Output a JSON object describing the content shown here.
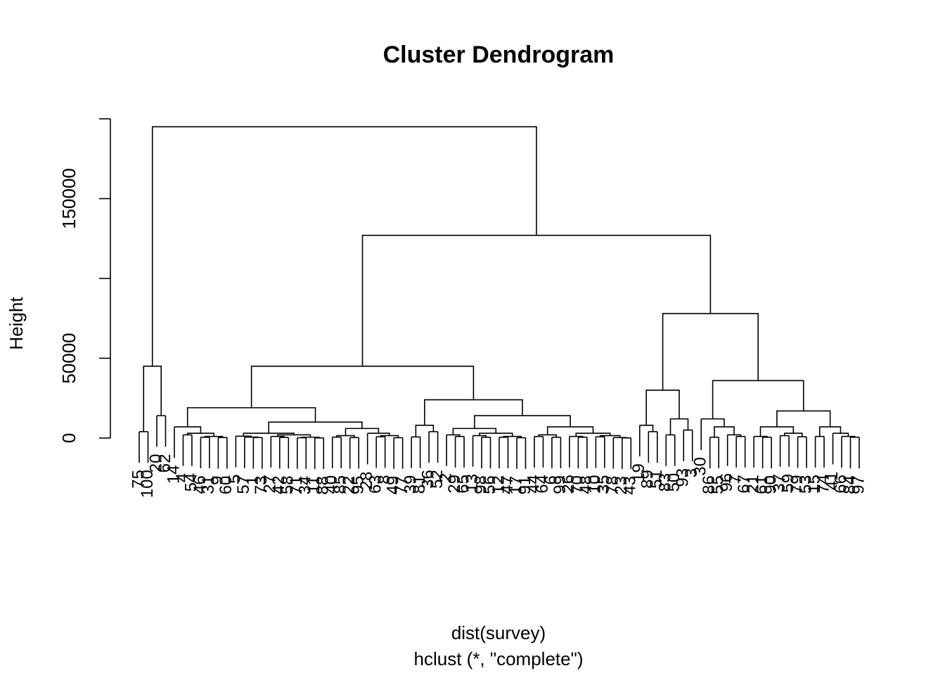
{
  "chart_data": {
    "type": "dendrogram",
    "title": "Cluster Dendrogram",
    "x_label": "dist(survey)",
    "subtitle": "hclust (*, \"complete\")",
    "y_label": "Height",
    "ylim": [
      0,
      200000
    ],
    "yticks": [
      0,
      50000,
      {
        "value": 100000,
        "label": null
      },
      150000,
      {
        "value": 200000,
        "label": null
      }
    ],
    "color": "#000000",
    "tree": {
      "height": 195000,
      "children": [
        {
          "height": 45000,
          "children": [
            {
              "height": 4000,
              "children": [
                "75",
                "100"
              ]
            },
            {
              "height": 14000,
              "children": [
                "20",
                "62"
              ]
            }
          ]
        },
        {
          "height": 127000,
          "children": [
            {
              "height": 45000,
              "children": [
                {
                  "height": 19000,
                  "children": [
                    {
                      "height": 7000,
                      "children": [
                        "14",
                        {
                          "height": 3000,
                          "children": [
                            {
                              "height": 2000,
                              "children": [
                                "4",
                                "54"
                              ]
                            },
                            {
                              "height": 1000,
                              "children": [
                                {
                                  "height": 500,
                                  "children": [
                                    "46",
                                    "31"
                                  ]
                                },
                                {
                                  "height": 300,
                                  "children": [
                                    "9",
                                    "60"
                                  ]
                                }
                              ]
                            }
                          ]
                        }
                      ]
                    },
                    {
                      "height": 10000,
                      "children": [
                        {
                          "height": 3000,
                          "children": [
                            {
                              "height": 1200,
                              "children": [
                                "5",
                                {
                                  "height": 600,
                                  "children": [
                                    "57",
                                    {
                                      "height": 300,
                                      "children": [
                                        "1",
                                        "73"
                                      ]
                                    }
                                  ]
                                }
                              ]
                            },
                            {
                              "height": 2000,
                              "children": [
                                {
                                  "height": 1000,
                                  "children": [
                                    "27",
                                    {
                                      "height": 400,
                                      "children": [
                                        "42",
                                        "58"
                                      ]
                                    }
                                  ]
                                },
                                {
                                  "height": 500,
                                  "children": [
                                    {
                                      "height": 200,
                                      "children": [
                                        "71",
                                        "34"
                                      ]
                                    },
                                    {
                                      "height": 100,
                                      "children": [
                                        "11",
                                        "88"
                                      ]
                                    }
                                  ]
                                }
                              ]
                            }
                          ]
                        },
                        {
                          "height": 6000,
                          "children": [
                            {
                              "height": 1500,
                              "children": [
                                {
                                  "height": 600,
                                  "children": [
                                    "40",
                                    "85"
                                  ]
                                },
                                {
                                  "height": 300,
                                  "children": [
                                    "22",
                                    "95"
                                  ]
                                }
                              ]
                            },
                            {
                              "height": 3000,
                              "children": [
                                "28",
                                {
                                  "height": 1500,
                                  "children": [
                                    {
                                      "height": 800,
                                      "children": [
                                        "63",
                                        "8"
                                      ]
                                    },
                                    {
                                      "height": 200,
                                      "children": [
                                        "49",
                                        "77"
                                      ]
                                    }
                                  ]
                                }
                              ]
                            }
                          ]
                        }
                      ]
                    }
                  ]
                },
                {
                  "height": 24000,
                  "children": [
                    {
                      "height": 8000,
                      "children": [
                        {
                          "height": 700,
                          "children": [
                            "39",
                            "81"
                          ]
                        },
                        {
                          "height": 4000,
                          "children": [
                            "36",
                            "52"
                          ]
                        }
                      ]
                    },
                    {
                      "height": 14000,
                      "children": [
                        {
                          "height": 6000,
                          "children": [
                            {
                              "height": 2000,
                              "children": [
                                "2",
                                {
                                  "height": 1000,
                                  "children": [
                                    "29",
                                    "65"
                                  ]
                                }
                              ]
                            },
                            {
                              "height": 3000,
                              "children": [
                                {
                                  "height": 1500,
                                  "children": [
                                    "13",
                                    {
                                      "height": 500,
                                      "children": [
                                        "98",
                                        "56"
                                      ]
                                    }
                                  ]
                                },
                                {
                                  "height": 1000,
                                  "children": [
                                    {
                                      "height": 500,
                                      "children": [
                                        "12",
                                        "47"
                                      ]
                                    },
                                    {
                                      "height": 200,
                                      "children": [
                                        "17",
                                        "91"
                                      ]
                                    }
                                  ]
                                }
                              ]
                            }
                          ]
                        },
                        {
                          "height": 7000,
                          "children": [
                            {
                              "height": 2000,
                              "children": [
                                {
                                  "height": 1000,
                                  "children": [
                                    "44",
                                    "64"
                                  ]
                                },
                                {
                                  "height": 500,
                                  "children": [
                                    "6",
                                    "99"
                                  ]
                                }
                              ]
                            },
                            {
                              "height": 3000,
                              "children": [
                                {
                                  "height": 1000,
                                  "children": [
                                    "26",
                                    {
                                      "height": 500,
                                      "children": [
                                        "70",
                                        "48"
                                      ]
                                    }
                                  ]
                                },
                                {
                                  "height": 1500,
                                  "children": [
                                    {
                                      "height": 800,
                                      "children": [
                                        "10",
                                        "35"
                                      ]
                                    },
                                    {
                                      "height": 300,
                                      "children": [
                                        "78",
                                        {
                                          "height": 100,
                                          "children": [
                                            "23",
                                            "43"
                                          ]
                                        }
                                      ]
                                    }
                                  ]
                                }
                              ]
                            }
                          ]
                        }
                      ]
                    }
                  ]
                }
              ]
            },
            {
              "height": 78000,
              "children": [
                {
                  "height": 30000,
                  "children": [
                    {
                      "height": 8000,
                      "children": [
                        "19",
                        {
                          "height": 4000,
                          "children": [
                            "89",
                            "51"
                          ]
                        }
                      ]
                    },
                    {
                      "height": 12000,
                      "children": [
                        {
                          "height": 2000,
                          "children": [
                            "83",
                            "50"
                          ]
                        },
                        {
                          "height": 5000,
                          "children": [
                            "93",
                            "3"
                          ]
                        }
                      ]
                    }
                  ]
                },
                {
                  "height": 36000,
                  "children": [
                    {
                      "height": 12000,
                      "children": [
                        "30",
                        {
                          "height": 7000,
                          "children": [
                            {
                              "height": 500,
                              "children": [
                                "86",
                                "55"
                              ]
                            },
                            {
                              "height": 2000,
                              "children": [
                                "96",
                                {
                                  "height": 1000,
                                  "children": [
                                    "7",
                                    "67"
                                  ]
                                }
                              ]
                            }
                          ]
                        }
                      ]
                    },
                    {
                      "height": 17000,
                      "children": [
                        {
                          "height": 7000,
                          "children": [
                            {
                              "height": 1000,
                              "children": [
                                "21",
                                {
                                  "height": 500,
                                  "children": [
                                    "61",
                                    "90"
                                  ]
                                }
                              ]
                            },
                            {
                              "height": 3000,
                              "children": [
                                {
                                  "height": 1500,
                                  "children": [
                                    "37",
                                    "59"
                                  ]
                                },
                                {
                                  "height": 800,
                                  "children": [
                                    "79",
                                    "53"
                                  ]
                                }
                              ]
                            }
                          ]
                        },
                        {
                          "height": 7000,
                          "children": [
                            {
                              "height": 1000,
                              "children": [
                                "15",
                                "74"
                              ]
                            },
                            {
                              "height": 3000,
                              "children": [
                                "41",
                                {
                                  "height": 1000,
                                  "children": [
                                    "66",
                                    {
                                      "height": 500,
                                      "children": [
                                        "84",
                                        "97"
                                      ]
                                    }
                                  ]
                                }
                              ]
                            }
                          ]
                        }
                      ]
                    }
                  ]
                }
              ]
            }
          ]
        }
      ]
    }
  }
}
